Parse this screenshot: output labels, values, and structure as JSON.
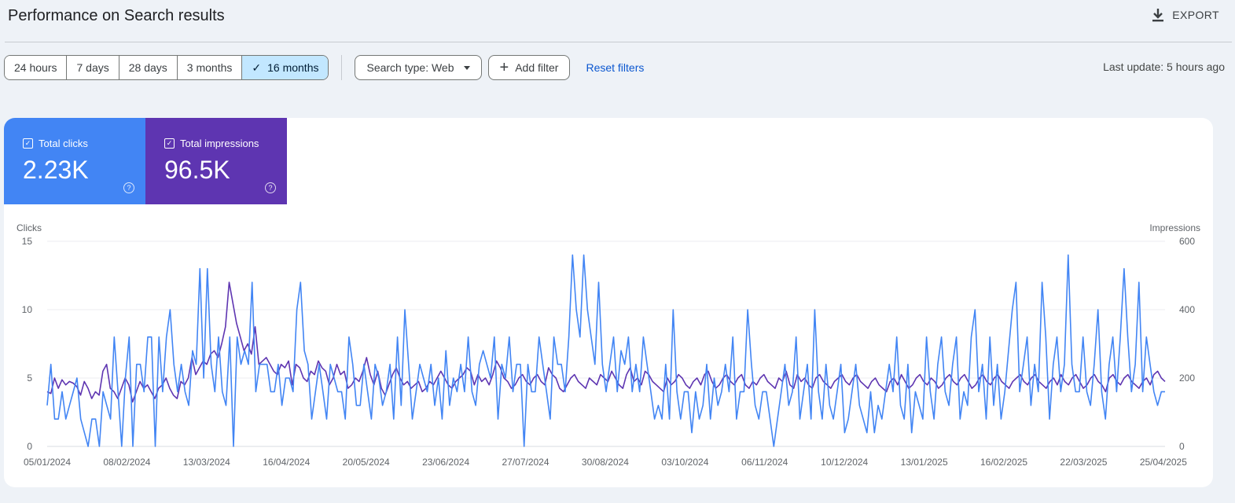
{
  "header": {
    "title": "Performance on Search results",
    "export_label": "EXPORT"
  },
  "toolbar": {
    "ranges": [
      {
        "label": "24 hours",
        "active": false
      },
      {
        "label": "7 days",
        "active": false
      },
      {
        "label": "28 days",
        "active": false
      },
      {
        "label": "3 months",
        "active": false
      },
      {
        "label": "16 months",
        "active": true
      }
    ],
    "search_type_label": "Search type: Web",
    "add_filter_label": "Add filter",
    "reset_label": "Reset filters",
    "last_update": "Last update: 5 hours ago"
  },
  "metrics": {
    "clicks": {
      "label": "Total clicks",
      "value": "2.23K",
      "color": "#4285f4"
    },
    "impressions": {
      "label": "Total impressions",
      "value": "96.5K",
      "color": "#5e35b1"
    }
  },
  "chart_data": {
    "type": "line",
    "ylabel": "Clicks",
    "y2label": "Impressions",
    "ylim": [
      0,
      15
    ],
    "y2lim": [
      0,
      600
    ],
    "yticks": [
      "0",
      "5",
      "10",
      "15"
    ],
    "y2ticks": [
      "0",
      "200",
      "400",
      "600"
    ],
    "x_tick_labels": [
      "05/01/2024",
      "08/02/2024",
      "13/03/2024",
      "16/04/2024",
      "20/05/2024",
      "23/06/2024",
      "27/07/2024",
      "30/08/2024",
      "03/10/2024",
      "06/11/2024",
      "10/12/2024",
      "13/01/2025",
      "16/02/2025",
      "22/03/2025",
      "25/04/2025"
    ],
    "series": [
      {
        "name": "Total clicks",
        "axis": "left",
        "color": "#4285f4",
        "values": [
          3,
          6,
          2,
          2,
          4,
          2,
          3,
          4,
          5,
          2,
          1,
          0,
          2,
          2,
          0,
          4,
          3,
          2,
          8,
          4,
          0,
          5,
          8,
          0,
          6,
          6,
          4,
          8,
          8,
          0,
          8,
          4,
          8,
          10,
          6,
          4,
          6,
          4,
          3,
          7,
          6,
          13,
          5,
          13,
          6,
          4,
          8,
          4,
          3,
          8,
          0,
          8,
          6,
          7,
          6,
          12,
          4,
          6,
          6,
          6,
          4,
          4,
          6,
          3,
          5,
          5,
          4,
          10,
          12,
          7,
          6,
          2,
          4,
          6,
          4,
          2,
          6,
          5,
          4,
          4,
          2,
          8,
          6,
          3,
          3,
          6,
          4,
          2,
          6,
          5,
          3,
          4,
          6,
          2,
          8,
          3,
          10,
          6,
          2,
          4,
          6,
          5,
          4,
          6,
          3,
          5,
          2,
          7,
          3,
          5,
          4,
          6,
          4,
          8,
          4,
          3,
          6,
          7,
          6,
          5,
          8,
          2,
          6,
          5,
          8,
          4,
          6,
          6,
          0,
          6,
          4,
          4,
          8,
          6,
          4,
          2,
          8,
          6,
          6,
          4,
          8,
          14,
          10,
          8,
          14,
          10,
          8,
          6,
          12,
          6,
          4,
          6,
          8,
          4,
          7,
          6,
          8,
          4,
          6,
          4,
          8,
          6,
          4,
          2,
          3,
          2,
          6,
          2,
          10,
          4,
          2,
          4,
          4,
          1,
          4,
          2,
          3,
          6,
          2,
          5,
          3,
          4,
          6,
          4,
          8,
          2,
          4,
          4,
          10,
          6,
          3,
          2,
          4,
          4,
          2,
          0,
          2,
          4,
          6,
          3,
          4,
          8,
          2,
          4,
          6,
          2,
          10,
          4,
          2,
          6,
          3,
          2,
          4,
          6,
          1,
          2,
          4,
          6,
          3,
          2,
          1,
          4,
          1,
          3,
          2,
          4,
          6,
          4,
          8,
          3,
          2,
          6,
          1,
          4,
          3,
          2,
          8,
          4,
          2,
          6,
          8,
          4,
          3,
          6,
          8,
          2,
          4,
          3,
          8,
          10,
          4,
          6,
          2,
          8,
          3,
          6,
          2,
          4,
          7,
          10,
          12,
          4,
          6,
          8,
          3,
          6,
          4,
          12,
          8,
          2,
          6,
          8,
          4,
          6,
          14,
          6,
          4,
          4,
          8,
          4,
          3,
          6,
          10,
          4,
          2,
          6,
          8,
          4,
          8,
          13,
          8,
          4,
          6,
          12,
          4,
          8,
          6,
          4,
          3,
          4,
          4
        ]
      },
      {
        "name": "Total impressions",
        "axis": "right",
        "color": "#5e35b1",
        "values": [
          160,
          155,
          200,
          170,
          195,
          180,
          190,
          185,
          175,
          150,
          190,
          170,
          140,
          160,
          150,
          220,
          240,
          170,
          160,
          140,
          170,
          200,
          180,
          130,
          160,
          190,
          170,
          180,
          160,
          140,
          170,
          180,
          200,
          170,
          150,
          140,
          190,
          180,
          200,
          260,
          210,
          230,
          250,
          240,
          270,
          280,
          260,
          300,
          350,
          480,
          420,
          360,
          320,
          280,
          300,
          270,
          350,
          240,
          250,
          260,
          240,
          220,
          210,
          240,
          230,
          250,
          180,
          240,
          230,
          200,
          190,
          220,
          210,
          250,
          230,
          220,
          180,
          200,
          240,
          210,
          220,
          170,
          180,
          200,
          190,
          220,
          260,
          210,
          180,
          220,
          170,
          150,
          180,
          210,
          230,
          200,
          180,
          190,
          170,
          180,
          190,
          160,
          170,
          190,
          180,
          200,
          220,
          200,
          180,
          170,
          190,
          200,
          210,
          230,
          220,
          180,
          210,
          190,
          200,
          180,
          210,
          250,
          230,
          200,
          190,
          170,
          180,
          200,
          210,
          190,
          180,
          200,
          210,
          190,
          180,
          230,
          210,
          200,
          170,
          160,
          180,
          200,
          210,
          190,
          180,
          170,
          200,
          190,
          180,
          210,
          200,
          190,
          220,
          200,
          180,
          170,
          210,
          230,
          190,
          200,
          180,
          220,
          210,
          190,
          180,
          170,
          160,
          200,
          180,
          190,
          210,
          200,
          180,
          170,
          190,
          200,
          180,
          210,
          220,
          190,
          170,
          180,
          200,
          210,
          190,
          180,
          200,
          210,
          180,
          170,
          190,
          180,
          200,
          210,
          190,
          180,
          170,
          200,
          190,
          220,
          180,
          170,
          210,
          190,
          200,
          180,
          170,
          200,
          210,
          190,
          180,
          170,
          190,
          200,
          210,
          190,
          180,
          200,
          210,
          190,
          180,
          170,
          190,
          200,
          180,
          170,
          160,
          190,
          200,
          180,
          210,
          190,
          170,
          180,
          200,
          210,
          190,
          180,
          200,
          190,
          170,
          180,
          200,
          210,
          190,
          180,
          200,
          210,
          190,
          170,
          180,
          200,
          210,
          190,
          180,
          200,
          210,
          190,
          180,
          170,
          190,
          200,
          210,
          190,
          180,
          200,
          210,
          190,
          180,
          170,
          190,
          200,
          180,
          210,
          190,
          180,
          200,
          210,
          190,
          170,
          180,
          200,
          210,
          190,
          180,
          160,
          200,
          210,
          190,
          180,
          200,
          210,
          190,
          180,
          170,
          190,
          200,
          180,
          210,
          220,
          200,
          190
        ]
      }
    ]
  }
}
